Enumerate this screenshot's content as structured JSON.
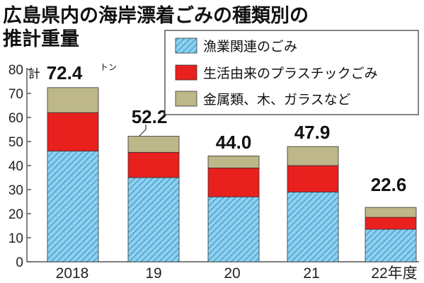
{
  "title": [
    "広島県内の海岸漂着ごみの種類別の",
    "推計重量"
  ],
  "chart_data": {
    "type": "bar",
    "stacked": true,
    "categories": [
      "2018",
      "19",
      "20",
      "21",
      "22年度"
    ],
    "series": [
      {
        "name": "漁業関連のごみ",
        "color": "#7ec8e8",
        "pattern": "diagonal-hatch",
        "values": [
          46,
          35,
          27,
          29,
          13.5
        ]
      },
      {
        "name": "生活由来のプラスチックごみ",
        "color": "#e8201e",
        "values": [
          16,
          10.5,
          12,
          11,
          5
        ]
      },
      {
        "name": "金属類、木、ガラスなど",
        "color": "#bdb789",
        "values": [
          10.4,
          6.7,
          5,
          7.9,
          4.1
        ]
      }
    ],
    "totals": [
      72.4,
      52.2,
      44.0,
      47.9,
      22.6
    ],
    "total_labels": [
      "72.4",
      "52.2",
      "44.0",
      "47.9",
      "22.6"
    ],
    "first_total_prefix": "計",
    "unit": "トン",
    "ylim": [
      0,
      80
    ],
    "yticks": [
      0,
      10,
      20,
      30,
      40,
      50,
      60,
      70,
      80
    ],
    "legend_position": "top-right",
    "grid": false
  }
}
